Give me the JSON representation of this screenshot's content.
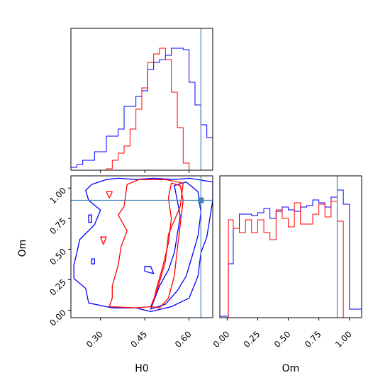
{
  "chart_data": {
    "type": "corner",
    "parameters": [
      "H0",
      "Om"
    ],
    "xlabels": {
      "H0": "H0",
      "Om": "Om"
    },
    "ylabels": {
      "Om": "Om"
    },
    "ranges": {
      "H0": [
        0.2,
        0.68
      ],
      "Om": [
        -0.06,
        1.1
      ]
    },
    "ticks": {
      "H0": [
        0.3,
        0.45,
        0.6
      ],
      "H0_labels": [
        "0.30",
        "0.45",
        "0.60"
      ],
      "Om": [
        0.0,
        0.25,
        0.5,
        0.75,
        1.0
      ],
      "Om_labels": [
        "0.00",
        "0.25",
        "0.50",
        "0.75",
        "1.00"
      ]
    },
    "truths": {
      "H0": 0.64,
      "Om": 0.9
    },
    "truth_color": "#4682b4",
    "series_colors": [
      "#0000ff",
      "#ff0000"
    ],
    "hist_H0": {
      "bin_edges": [
        0.2,
        0.22,
        0.24,
        0.26,
        0.28,
        0.3,
        0.32,
        0.34,
        0.36,
        0.38,
        0.4,
        0.42,
        0.44,
        0.46,
        0.48,
        0.5,
        0.52,
        0.54,
        0.56,
        0.58,
        0.6,
        0.62,
        0.64,
        0.66,
        0.68
      ],
      "series": [
        {
          "values": [
            0.02,
            0.04,
            0.07,
            0.07,
            0.13,
            0.13,
            0.24,
            0.24,
            0.29,
            0.45,
            0.45,
            0.52,
            0.56,
            0.71,
            0.76,
            0.78,
            0.81,
            0.86,
            0.86,
            0.85,
            0.62,
            0.46,
            0.32,
            0.23
          ]
        },
        {
          "values": [
            0.0,
            0.0,
            0.0,
            0.0,
            0.0,
            0.0,
            0.01,
            0.07,
            0.12,
            0.17,
            0.29,
            0.43,
            0.58,
            0.76,
            0.82,
            0.86,
            0.78,
            0.55,
            0.3,
            0.05,
            0.0,
            0.0,
            0.0,
            0.0
          ]
        }
      ]
    },
    "hist_Om": {
      "bin_edges": [
        -0.06,
        0.01,
        0.05,
        0.1,
        0.15,
        0.2,
        0.25,
        0.3,
        0.35,
        0.4,
        0.45,
        0.5,
        0.55,
        0.6,
        0.65,
        0.7,
        0.75,
        0.8,
        0.85,
        0.9,
        0.95,
        1.0,
        1.1
      ],
      "series": [
        {
          "values": [
            0.01,
            0.38,
            0.63,
            0.73,
            0.73,
            0.72,
            0.74,
            0.77,
            0.7,
            0.75,
            0.78,
            0.76,
            0.75,
            0.78,
            0.79,
            0.83,
            0.81,
            0.78,
            0.85,
            0.9,
            0.8,
            0.06
          ]
        },
        {
          "values": [
            0.0,
            0.69,
            0.63,
            0.6,
            0.69,
            0.6,
            0.69,
            0.6,
            0.55,
            0.76,
            0.7,
            0.64,
            0.81,
            0.66,
            0.66,
            0.73,
            0.8,
            0.71,
            0.82,
            0.68,
            0.0,
            0.0
          ]
        }
      ]
    },
    "contours": {
      "series": [
        {
          "levels": [
            {
              "points": [
                [
                  0.21,
                  0.37
                ],
                [
                  0.21,
                  0.26
                ],
                [
                  0.25,
                  0.18
                ],
                [
                  0.26,
                  0.06
                ],
                [
                  0.34,
                  0.02
                ],
                [
                  0.42,
                  0.02
                ],
                [
                  0.47,
                  -0.01
                ],
                [
                  0.54,
                  0.03
                ],
                [
                  0.6,
                  0.1
                ],
                [
                  0.63,
                  0.28
                ],
                [
                  0.64,
                  0.47
                ],
                [
                  0.66,
                  0.6
                ],
                [
                  0.68,
                  0.9
                ],
                [
                  0.68,
                  1.05
                ],
                [
                  0.6,
                  1.08
                ],
                [
                  0.55,
                  1.07
                ],
                [
                  0.48,
                  1.08
                ],
                [
                  0.42,
                  1.07
                ],
                [
                  0.36,
                  1.08
                ],
                [
                  0.32,
                  1.07
                ],
                [
                  0.27,
                  1.03
                ],
                [
                  0.25,
                  0.98
                ],
                [
                  0.26,
                  0.9
                ],
                [
                  0.3,
                  0.82
                ],
                [
                  0.28,
                  0.7
                ],
                [
                  0.23,
                  0.58
                ],
                [
                  0.22,
                  0.47
                ]
              ]
            },
            {
              "points": [
                [
                  0.47,
                  0.01
                ],
                [
                  0.52,
                  0.05
                ],
                [
                  0.56,
                  0.16
                ],
                [
                  0.59,
                  0.28
                ],
                [
                  0.61,
                  0.44
                ],
                [
                  0.63,
                  0.61
                ],
                [
                  0.64,
                  0.8
                ],
                [
                  0.63,
                  0.97
                ],
                [
                  0.59,
                  1.05
                ],
                [
                  0.55,
                  1.02
                ],
                [
                  0.56,
                  0.9
                ],
                [
                  0.57,
                  0.77
                ],
                [
                  0.56,
                  0.62
                ],
                [
                  0.55,
                  0.47
                ],
                [
                  0.53,
                  0.33
                ],
                [
                  0.5,
                  0.2
                ]
              ]
            },
            {
              "points": [
                [
                  0.27,
                  0.42
                ],
                [
                  0.27,
                  0.38
                ],
                [
                  0.28,
                  0.38
                ],
                [
                  0.28,
                  0.42
                ]
              ]
            },
            {
              "points": [
                [
                  0.45,
                  0.32
                ],
                [
                  0.48,
                  0.3
                ],
                [
                  0.47,
                  0.36
                ],
                [
                  0.45,
                  0.36
                ]
              ]
            },
            {
              "points": [
                [
                  0.26,
                  0.78
                ],
                [
                  0.26,
                  0.72
                ],
                [
                  0.27,
                  0.72
                ],
                [
                  0.27,
                  0.78
                ]
              ]
            }
          ]
        },
        {
          "levels": [
            {
              "points": [
                [
                  0.33,
                  0.03
                ],
                [
                  0.42,
                  0.02
                ],
                [
                  0.47,
                  0.03
                ],
                [
                  0.49,
                  0.15
                ],
                [
                  0.52,
                  0.4
                ],
                [
                  0.53,
                  0.62
                ],
                [
                  0.57,
                  0.85
                ],
                [
                  0.58,
                  1.04
                ],
                [
                  0.52,
                  1.07
                ],
                [
                  0.43,
                  1.07
                ],
                [
                  0.39,
                  1.03
                ],
                [
                  0.38,
                  0.85
                ],
                [
                  0.36,
                  0.78
                ],
                [
                  0.39,
                  0.65
                ],
                [
                  0.37,
                  0.52
                ],
                [
                  0.36,
                  0.37
                ],
                [
                  0.34,
                  0.2
                ],
                [
                  0.34,
                  0.1
                ]
              ]
            },
            {
              "points": [
                [
                  0.47,
                  0.03
                ],
                [
                  0.5,
                  0.02
                ],
                [
                  0.53,
                  0.1
                ],
                [
                  0.55,
                  0.28
                ],
                [
                  0.56,
                  0.5
                ],
                [
                  0.57,
                  0.7
                ],
                [
                  0.58,
                  0.9
                ],
                [
                  0.57,
                  1.02
                ],
                [
                  0.54,
                  1.04
                ],
                [
                  0.53,
                  0.92
                ],
                [
                  0.54,
                  0.75
                ],
                [
                  0.53,
                  0.55
                ],
                [
                  0.51,
                  0.35
                ],
                [
                  0.49,
                  0.18
                ],
                [
                  0.48,
                  0.08
                ]
              ]
            },
            {
              "points": [
                [
                  0.3,
                  0.6
                ],
                [
                  0.31,
                  0.54
                ],
                [
                  0.32,
                  0.6
                ]
              ]
            },
            {
              "points": [
                [
                  0.32,
                  0.97
                ],
                [
                  0.33,
                  0.92
                ],
                [
                  0.34,
                  0.97
                ]
              ]
            }
          ]
        }
      ]
    }
  }
}
